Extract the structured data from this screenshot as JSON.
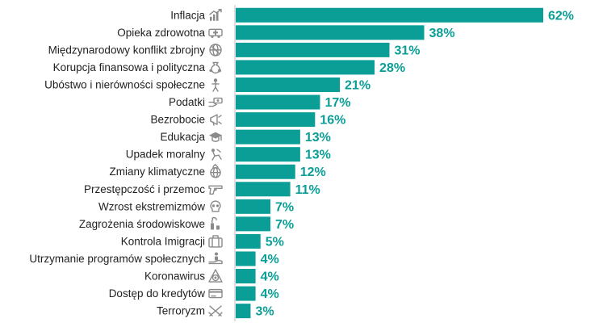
{
  "colors": {
    "bar": "#0a9e96",
    "value_text": "#0a9e96",
    "icon": "#8a8a8a",
    "axis": "#bfbfbf"
  },
  "chart_data": {
    "type": "bar",
    "orientation": "horizontal",
    "title": "",
    "xlabel": "",
    "ylabel": "",
    "xlim": [
      0,
      62
    ],
    "grid": false,
    "value_suffix": "%",
    "categories": [
      "Inflacja",
      "Opieka zdrowotna",
      "Międzynarodowy konflikt zbrojny",
      "Korupcja finansowa i polityczna",
      "Ubóstwo i nierówności społeczne",
      "Podatki",
      "Bezrobocie",
      "Edukacja",
      "Upadek moralny",
      "Zmiany klimatyczne",
      "Przestępczość i przemoc",
      "Wzrost ekstremizmów",
      "Zagrożenia środowiskowe",
      "Kontrola Imigracji",
      "Utrzymanie programów społecznych",
      "Koronawirus",
      "Dostęp do kredytów",
      "Terroryzm"
    ],
    "values": [
      62,
      38,
      31,
      28,
      21,
      17,
      16,
      13,
      13,
      12,
      11,
      7,
      7,
      5,
      4,
      4,
      4,
      3
    ],
    "value_labels": [
      "62%",
      "38%",
      "31%",
      "28%",
      "21%",
      "17%",
      "16%",
      "13%",
      "13%",
      "12%",
      "11%",
      "7%",
      "7%",
      "5%",
      "4%",
      "4%",
      "4%",
      "3%"
    ],
    "icons": [
      "chart-up-icon",
      "ambulance-icon",
      "globe-conflict-icon",
      "money-bag-icon",
      "person-icon",
      "cash-hand-icon",
      "megaphone-icon",
      "graduation-cap-icon",
      "broken-figure-icon",
      "globe-fire-icon",
      "gun-icon",
      "skull-icon",
      "smokestack-icon",
      "suitcase-icon",
      "hand-person-icon",
      "biohazard-icon",
      "credit-card-icon",
      "crossed-weapons-icon"
    ]
  }
}
